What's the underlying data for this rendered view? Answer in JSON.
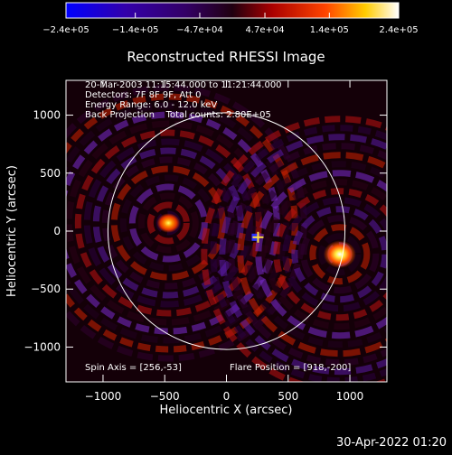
{
  "chart_data": {
    "type": "heatmap",
    "title": "Reconstructed RHESSI Image",
    "xlabel": "Heliocentric X (arcsec)",
    "ylabel": "Heliocentric Y (arcsec)",
    "xlim": [
      -1300,
      1300
    ],
    "ylim": [
      -1300,
      1300
    ],
    "x_ticks": [
      -1000,
      -500,
      0,
      500,
      1000
    ],
    "y_ticks": [
      -1000,
      -500,
      0,
      500,
      1000
    ],
    "x_tick_labels": [
      "−1000",
      "−500",
      "0",
      "500",
      "1000"
    ],
    "y_tick_labels": [
      "−1000",
      "−500",
      "0",
      "500",
      "1000"
    ],
    "grid": false,
    "colorbar": {
      "min": -240000,
      "max": 240000,
      "tick_values": [
        -240000,
        -140000,
        -47000,
        47000,
        140000,
        240000
      ],
      "tick_labels": [
        "−2.4e+05",
        "−1.4e+05",
        "−4.7e+04",
        "4.7e+04",
        "1.4e+05",
        "2.4e+05"
      ],
      "placement": "top"
    },
    "solar_disk": {
      "center": [
        0,
        0
      ],
      "radius": 960
    },
    "sources": [
      {
        "x": -470,
        "y": 70,
        "peak": 150000
      },
      {
        "x": 918,
        "y": -200,
        "peak": 240000
      }
    ],
    "markers": [
      {
        "kind": "cross",
        "x": 256,
        "y": -53
      }
    ],
    "annotations": [
      "20-Mar-2003 11:15:44.000 to 11:21:44.000",
      "Detectors: 7F 8F 9F, Att 0",
      "Energy Range: 6.0 - 12.0 keV",
      "Back Projection    Total counts: 2.80E+05"
    ],
    "spin_axis_label": "Spin Axis = [256,-53]",
    "flare_position_label": "Flare Position = [918,-200]"
  },
  "footer": {
    "date": "30-Apr-2022 01:20"
  },
  "colors": {
    "background": "#000000",
    "axis": "#ffffff"
  }
}
